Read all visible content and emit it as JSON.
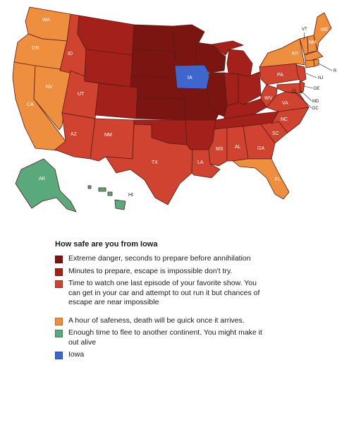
{
  "colors": {
    "extreme": "#7a1512",
    "minutes": "#a4201b",
    "episode": "#cf4330",
    "hour": "#ed8f3e",
    "flee": "#5aa97c",
    "iowa": "#3f66cc"
  },
  "legend": {
    "title": "How safe are you from Iowa",
    "items": [
      {
        "category": "extreme",
        "label": "Extreme danger, seconds to prepare before annihilation"
      },
      {
        "category": "minutes",
        "label": "Minutes to prepare, escape is impossible don't try."
      },
      {
        "category": "episode",
        "label": "Time to watch one last episode of your favorite show. You can get in your car and attempt to out run it but chances of escape are near impossible"
      },
      {
        "category": "hour",
        "label": "A hour of safeness, death will be quick once it arrives."
      },
      {
        "category": "flee",
        "label": "Enough time to flee to another continent. You might make it out alive"
      },
      {
        "category": "iowa",
        "label": "Iowa"
      }
    ]
  },
  "states": {
    "WA": {
      "label": "WA",
      "category": "hour"
    },
    "OR": {
      "label": "OR",
      "category": "hour"
    },
    "CA": {
      "label": "CA",
      "category": "hour"
    },
    "NV": {
      "label": "NV",
      "category": "hour"
    },
    "ID": {
      "label": "ID",
      "category": "episode"
    },
    "UT": {
      "label": "UT",
      "category": "episode"
    },
    "AZ": {
      "label": "AZ",
      "category": "episode"
    },
    "MT": {
      "label": "",
      "category": "minutes"
    },
    "WY": {
      "label": "",
      "category": "minutes"
    },
    "CO": {
      "label": "",
      "category": "minutes"
    },
    "NM": {
      "label": "NM",
      "category": "episode"
    },
    "ND": {
      "label": "",
      "category": "extreme"
    },
    "SD": {
      "label": "",
      "category": "extreme"
    },
    "NE": {
      "label": "",
      "category": "extreme"
    },
    "KS": {
      "label": "",
      "category": "extreme"
    },
    "OK": {
      "label": "",
      "category": "minutes"
    },
    "TX": {
      "label": "TX",
      "category": "episode"
    },
    "MN": {
      "label": "",
      "category": "extreme"
    },
    "IA": {
      "label": "IA",
      "category": "iowa"
    },
    "MO": {
      "label": "",
      "category": "extreme"
    },
    "AR": {
      "label": "",
      "category": "minutes"
    },
    "LA": {
      "label": "LA",
      "category": "episode"
    },
    "WI": {
      "label": "",
      "category": "extreme"
    },
    "IL": {
      "label": "",
      "category": "extreme"
    },
    "MI": {
      "label": "",
      "category": "minutes"
    },
    "IN": {
      "label": "",
      "category": "minutes"
    },
    "OH": {
      "label": "",
      "category": "minutes"
    },
    "KY": {
      "label": "",
      "category": "minutes"
    },
    "TN": {
      "label": "",
      "category": "minutes"
    },
    "MS": {
      "label": "MS",
      "category": "episode"
    },
    "AL": {
      "label": "AL",
      "category": "episode"
    },
    "GA": {
      "label": "GA",
      "category": "episode"
    },
    "FL": {
      "label": "FL",
      "category": "hour"
    },
    "SC": {
      "label": "SC",
      "category": "episode"
    },
    "NC": {
      "label": "NC",
      "category": "episode"
    },
    "VA": {
      "label": "VA",
      "category": "episode"
    },
    "WV": {
      "label": "WV",
      "category": "episode"
    },
    "PA": {
      "label": "PA",
      "category": "episode"
    },
    "NY": {
      "label": "NY",
      "category": "hour"
    },
    "VT": {
      "label": "VT",
      "category": "hour"
    },
    "NH": {
      "label": "NH",
      "category": "hour"
    },
    "ME": {
      "label": "ME",
      "category": "hour"
    },
    "MA": {
      "label": "",
      "category": "hour"
    },
    "CT": {
      "label": "",
      "category": "hour"
    },
    "RI": {
      "label": "R",
      "category": "hour"
    },
    "NJ": {
      "label": "NJ",
      "category": "episode"
    },
    "DE": {
      "label": "DE",
      "category": "episode"
    },
    "MD": {
      "label": "MD",
      "category": "episode"
    },
    "DC": {
      "label": "DC",
      "category": "episode"
    },
    "AK": {
      "label": "AK",
      "category": "flee"
    },
    "HI": {
      "label": "HI",
      "category": "flee"
    }
  }
}
